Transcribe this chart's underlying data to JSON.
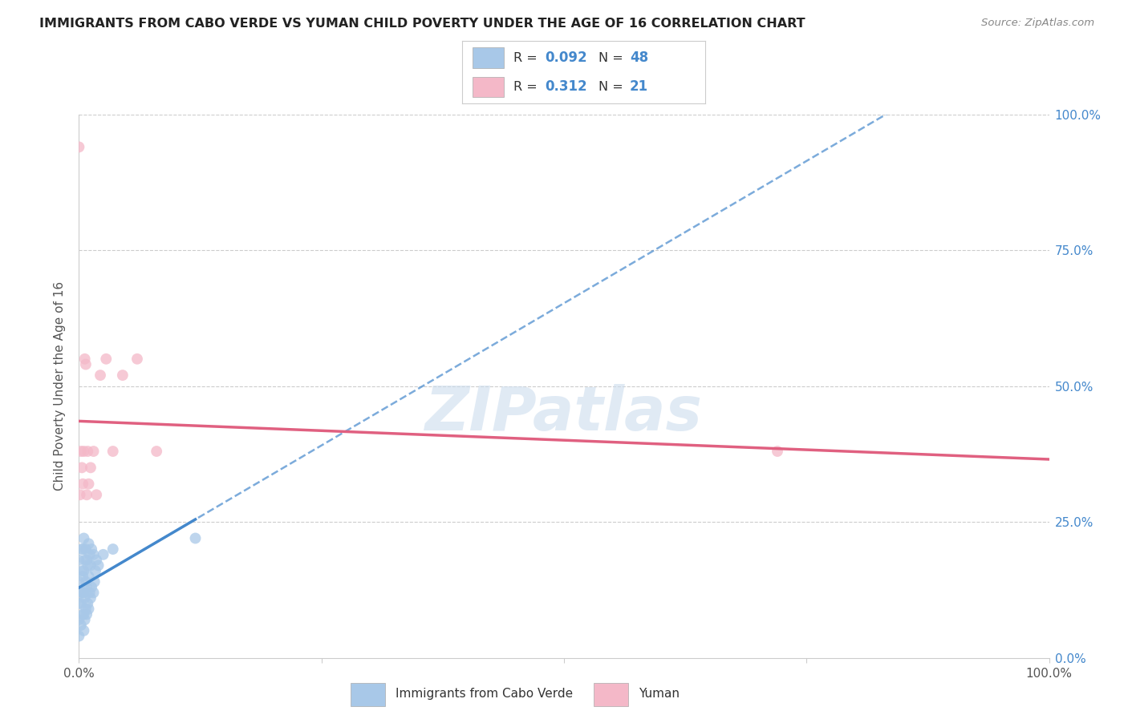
{
  "title": "IMMIGRANTS FROM CABO VERDE VS YUMAN CHILD POVERTY UNDER THE AGE OF 16 CORRELATION CHART",
  "source": "Source: ZipAtlas.com",
  "ylabel": "Child Poverty Under the Age of 16",
  "xmin": 0.0,
  "xmax": 1.0,
  "ymin": 0.0,
  "ymax": 1.0,
  "legend_labels": [
    "Immigrants from Cabo Verde",
    "Yuman"
  ],
  "r_cabo": "0.092",
  "n_cabo": "48",
  "r_yuman": "0.312",
  "n_yuman": "21",
  "color_cabo": "#a8c8e8",
  "color_yuman": "#f4b8c8",
  "trendline_cabo_color": "#4488cc",
  "trendline_yuman_color": "#e06080",
  "background_color": "#ffffff",
  "watermark": "ZIPatlas",
  "cabo_x": [
    0.0,
    0.0,
    0.0,
    0.0,
    0.0,
    0.002,
    0.002,
    0.003,
    0.003,
    0.003,
    0.004,
    0.004,
    0.004,
    0.004,
    0.005,
    0.005,
    0.005,
    0.005,
    0.005,
    0.006,
    0.006,
    0.006,
    0.007,
    0.007,
    0.007,
    0.008,
    0.008,
    0.008,
    0.009,
    0.009,
    0.01,
    0.01,
    0.01,
    0.011,
    0.011,
    0.012,
    0.012,
    0.013,
    0.013,
    0.015,
    0.015,
    0.016,
    0.017,
    0.018,
    0.02,
    0.025,
    0.035,
    0.12
  ],
  "cabo_y": [
    0.04,
    0.07,
    0.1,
    0.14,
    0.18,
    0.06,
    0.1,
    0.12,
    0.16,
    0.2,
    0.08,
    0.12,
    0.15,
    0.2,
    0.05,
    0.08,
    0.12,
    0.16,
    0.22,
    0.07,
    0.11,
    0.18,
    0.09,
    0.14,
    0.2,
    0.08,
    0.13,
    0.18,
    0.1,
    0.17,
    0.09,
    0.15,
    0.21,
    0.12,
    0.19,
    0.11,
    0.17,
    0.13,
    0.2,
    0.12,
    0.19,
    0.14,
    0.16,
    0.18,
    0.17,
    0.19,
    0.2,
    0.22
  ],
  "yuman_x": [
    0.0,
    0.001,
    0.002,
    0.003,
    0.004,
    0.005,
    0.006,
    0.007,
    0.008,
    0.009,
    0.01,
    0.012,
    0.015,
    0.018,
    0.022,
    0.028,
    0.035,
    0.045,
    0.06,
    0.08,
    0.72
  ],
  "yuman_y": [
    0.94,
    0.3,
    0.38,
    0.35,
    0.32,
    0.38,
    0.55,
    0.54,
    0.3,
    0.38,
    0.32,
    0.35,
    0.38,
    0.3,
    0.52,
    0.55,
    0.38,
    0.52,
    0.55,
    0.38,
    0.38
  ]
}
